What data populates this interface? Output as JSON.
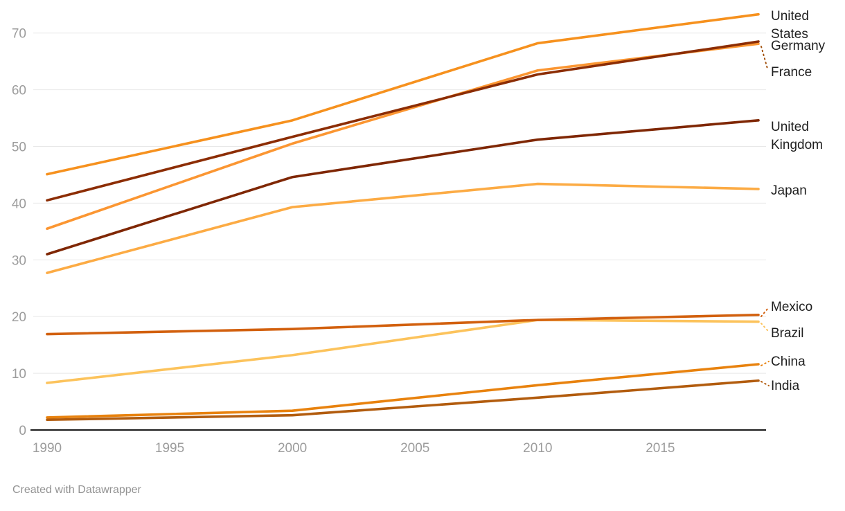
{
  "chart_data": {
    "type": "line",
    "x": [
      1990,
      2000,
      2010,
      2019
    ],
    "x_ticks": [
      "1990",
      "1995",
      "2000",
      "2005",
      "2010",
      "2015"
    ],
    "y_ticks": [
      "0",
      "10",
      "20",
      "30",
      "40",
      "50",
      "60",
      "70"
    ],
    "xlim": [
      1990,
      2019
    ],
    "ylim": [
      0,
      70
    ],
    "grid": "horizontal",
    "legend_position": "right-edge-labels",
    "title": "",
    "xlabel": "",
    "ylabel": "",
    "series": [
      {
        "name": "United States",
        "color": "#f6911e",
        "values": [
          45.1,
          54.6,
          68.2,
          73.3
        ]
      },
      {
        "name": "France",
        "color": "#fb9632",
        "values": [
          35.5,
          50.5,
          63.4,
          68.1
        ]
      },
      {
        "name": "Germany",
        "color": "#8c2d04",
        "values": [
          40.5,
          51.7,
          62.7,
          68.5
        ]
      },
      {
        "name": "United Kingdom",
        "color": "#7f2704",
        "values": [
          31.0,
          44.6,
          51.2,
          54.6
        ]
      },
      {
        "name": "Japan",
        "color": "#fcab44",
        "values": [
          27.7,
          39.3,
          43.4,
          42.5
        ]
      },
      {
        "name": "Brazil",
        "color": "#fcc35c",
        "values": [
          8.3,
          13.2,
          19.4,
          19.1
        ]
      },
      {
        "name": "Mexico",
        "color": "#d2600e",
        "values": [
          16.9,
          17.8,
          19.4,
          20.3
        ]
      },
      {
        "name": "India",
        "color": "#b25c0e",
        "values": [
          1.8,
          2.6,
          5.7,
          8.7
        ]
      },
      {
        "name": "China",
        "color": "#e8820e",
        "values": [
          2.2,
          3.4,
          7.9,
          11.6
        ]
      }
    ]
  },
  "footer": {
    "credit": "Created with Datawrapper"
  }
}
